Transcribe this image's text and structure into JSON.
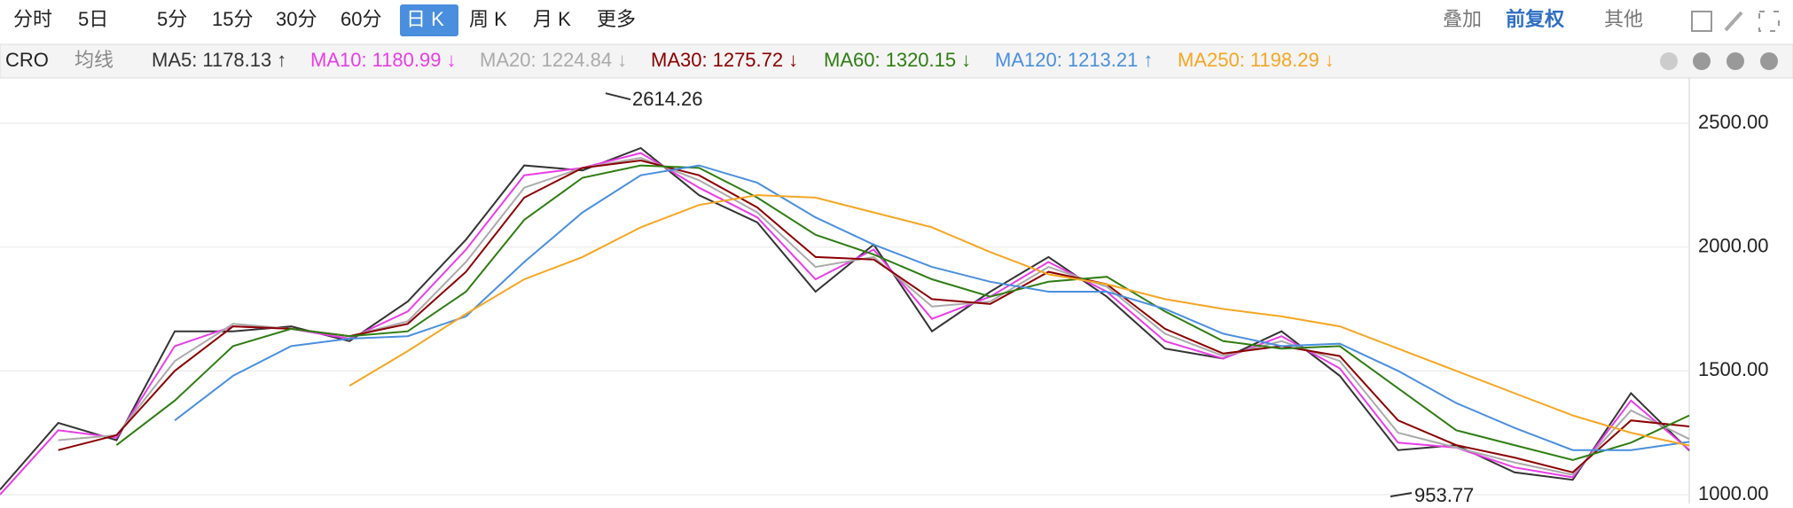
{
  "toolbar": {
    "periods": [
      "分时",
      "5日",
      "5分",
      "15分",
      "30分",
      "60分",
      "日 K",
      "周 K",
      "月 K",
      "更多"
    ],
    "active": "日 K",
    "right": [
      "叠加",
      "前复权",
      "其他"
    ]
  },
  "chart_data": {
    "type": "line",
    "symbol": "CRO",
    "indicator": "均线",
    "ylim": [
      964,
      2683
    ],
    "yticks": [
      {
        "value": 1000,
        "label": "1000.00"
      },
      {
        "value": 1500,
        "label": "1500.00"
      },
      {
        "value": 2000,
        "label": "2000.00"
      },
      {
        "value": 2500,
        "label": "2500.00"
      }
    ],
    "grid": true,
    "annotations": {
      "high": 2614.26,
      "low": 953.77
    },
    "series": [
      {
        "name": "MA5:",
        "color": "#333333",
        "trend": "↑",
        "values": [
          1020,
          1290,
          1220,
          1660,
          1660,
          1680,
          1620,
          1780,
          2030,
          2330,
          2310,
          2400,
          2210,
          2100,
          1820,
          2010,
          1660,
          1820,
          1960,
          1800,
          1590,
          1550,
          1660,
          1480,
          1180,
          1200,
          1090,
          1060,
          1410,
          1178.13
        ]
      },
      {
        "name": "MA10:",
        "color": "#e83ee8",
        "trend": "↓",
        "values": [
          1000,
          1260,
          1230,
          1600,
          1680,
          1670,
          1630,
          1740,
          1990,
          2290,
          2320,
          2380,
          2240,
          2120,
          1870,
          1990,
          1710,
          1800,
          1940,
          1820,
          1620,
          1550,
          1640,
          1510,
          1210,
          1190,
          1110,
          1070,
          1380,
          1180.99
        ]
      },
      {
        "name": "MA20:",
        "color": "#aaaaaa",
        "trend": "↓",
        "values": [
          null,
          1220,
          1240,
          1540,
          1690,
          1670,
          1640,
          1700,
          1940,
          2240,
          2320,
          2360,
          2270,
          2140,
          1920,
          1960,
          1760,
          1780,
          1920,
          1840,
          1650,
          1560,
          1620,
          1540,
          1250,
          1190,
          1130,
          1080,
          1340,
          1224.84
        ]
      },
      {
        "name": "MA30:",
        "color": "#8b0000",
        "trend": "↓",
        "values": [
          null,
          1180,
          1240,
          1500,
          1680,
          1670,
          1640,
          1690,
          1900,
          2200,
          2320,
          2350,
          2290,
          2160,
          1960,
          1950,
          1790,
          1770,
          1900,
          1850,
          1670,
          1570,
          1600,
          1560,
          1300,
          1200,
          1150,
          1090,
          1300,
          1275.72
        ]
      },
      {
        "name": "MA60:",
        "color": "#2e7d12",
        "trend": "↓",
        "values": [
          null,
          null,
          1200,
          1380,
          1600,
          1670,
          1640,
          1660,
          1820,
          2110,
          2280,
          2330,
          2320,
          2200,
          2050,
          1970,
          1870,
          1800,
          1860,
          1880,
          1740,
          1620,
          1590,
          1600,
          1430,
          1260,
          1200,
          1140,
          1210,
          1320.15
        ]
      },
      {
        "name": "MA120:",
        "color": "#4a8fdd",
        "trend": "↑",
        "values": [
          null,
          null,
          null,
          1300,
          1480,
          1600,
          1630,
          1640,
          1720,
          1940,
          2140,
          2290,
          2330,
          2260,
          2120,
          2010,
          1920,
          1860,
          1820,
          1820,
          1750,
          1650,
          1600,
          1610,
          1500,
          1370,
          1270,
          1180,
          1180,
          1213.21
        ]
      },
      {
        "name": "MA250:",
        "color": "#f5a623",
        "trend": "↓",
        "values": [
          null,
          null,
          null,
          null,
          null,
          null,
          1440,
          1580,
          1730,
          1870,
          1960,
          2080,
          2170,
          2210,
          2200,
          2140,
          2080,
          1980,
          1890,
          1850,
          1790,
          1750,
          1720,
          1680,
          1590,
          1500,
          1410,
          1320,
          1250,
          1198.29
        ]
      }
    ]
  }
}
